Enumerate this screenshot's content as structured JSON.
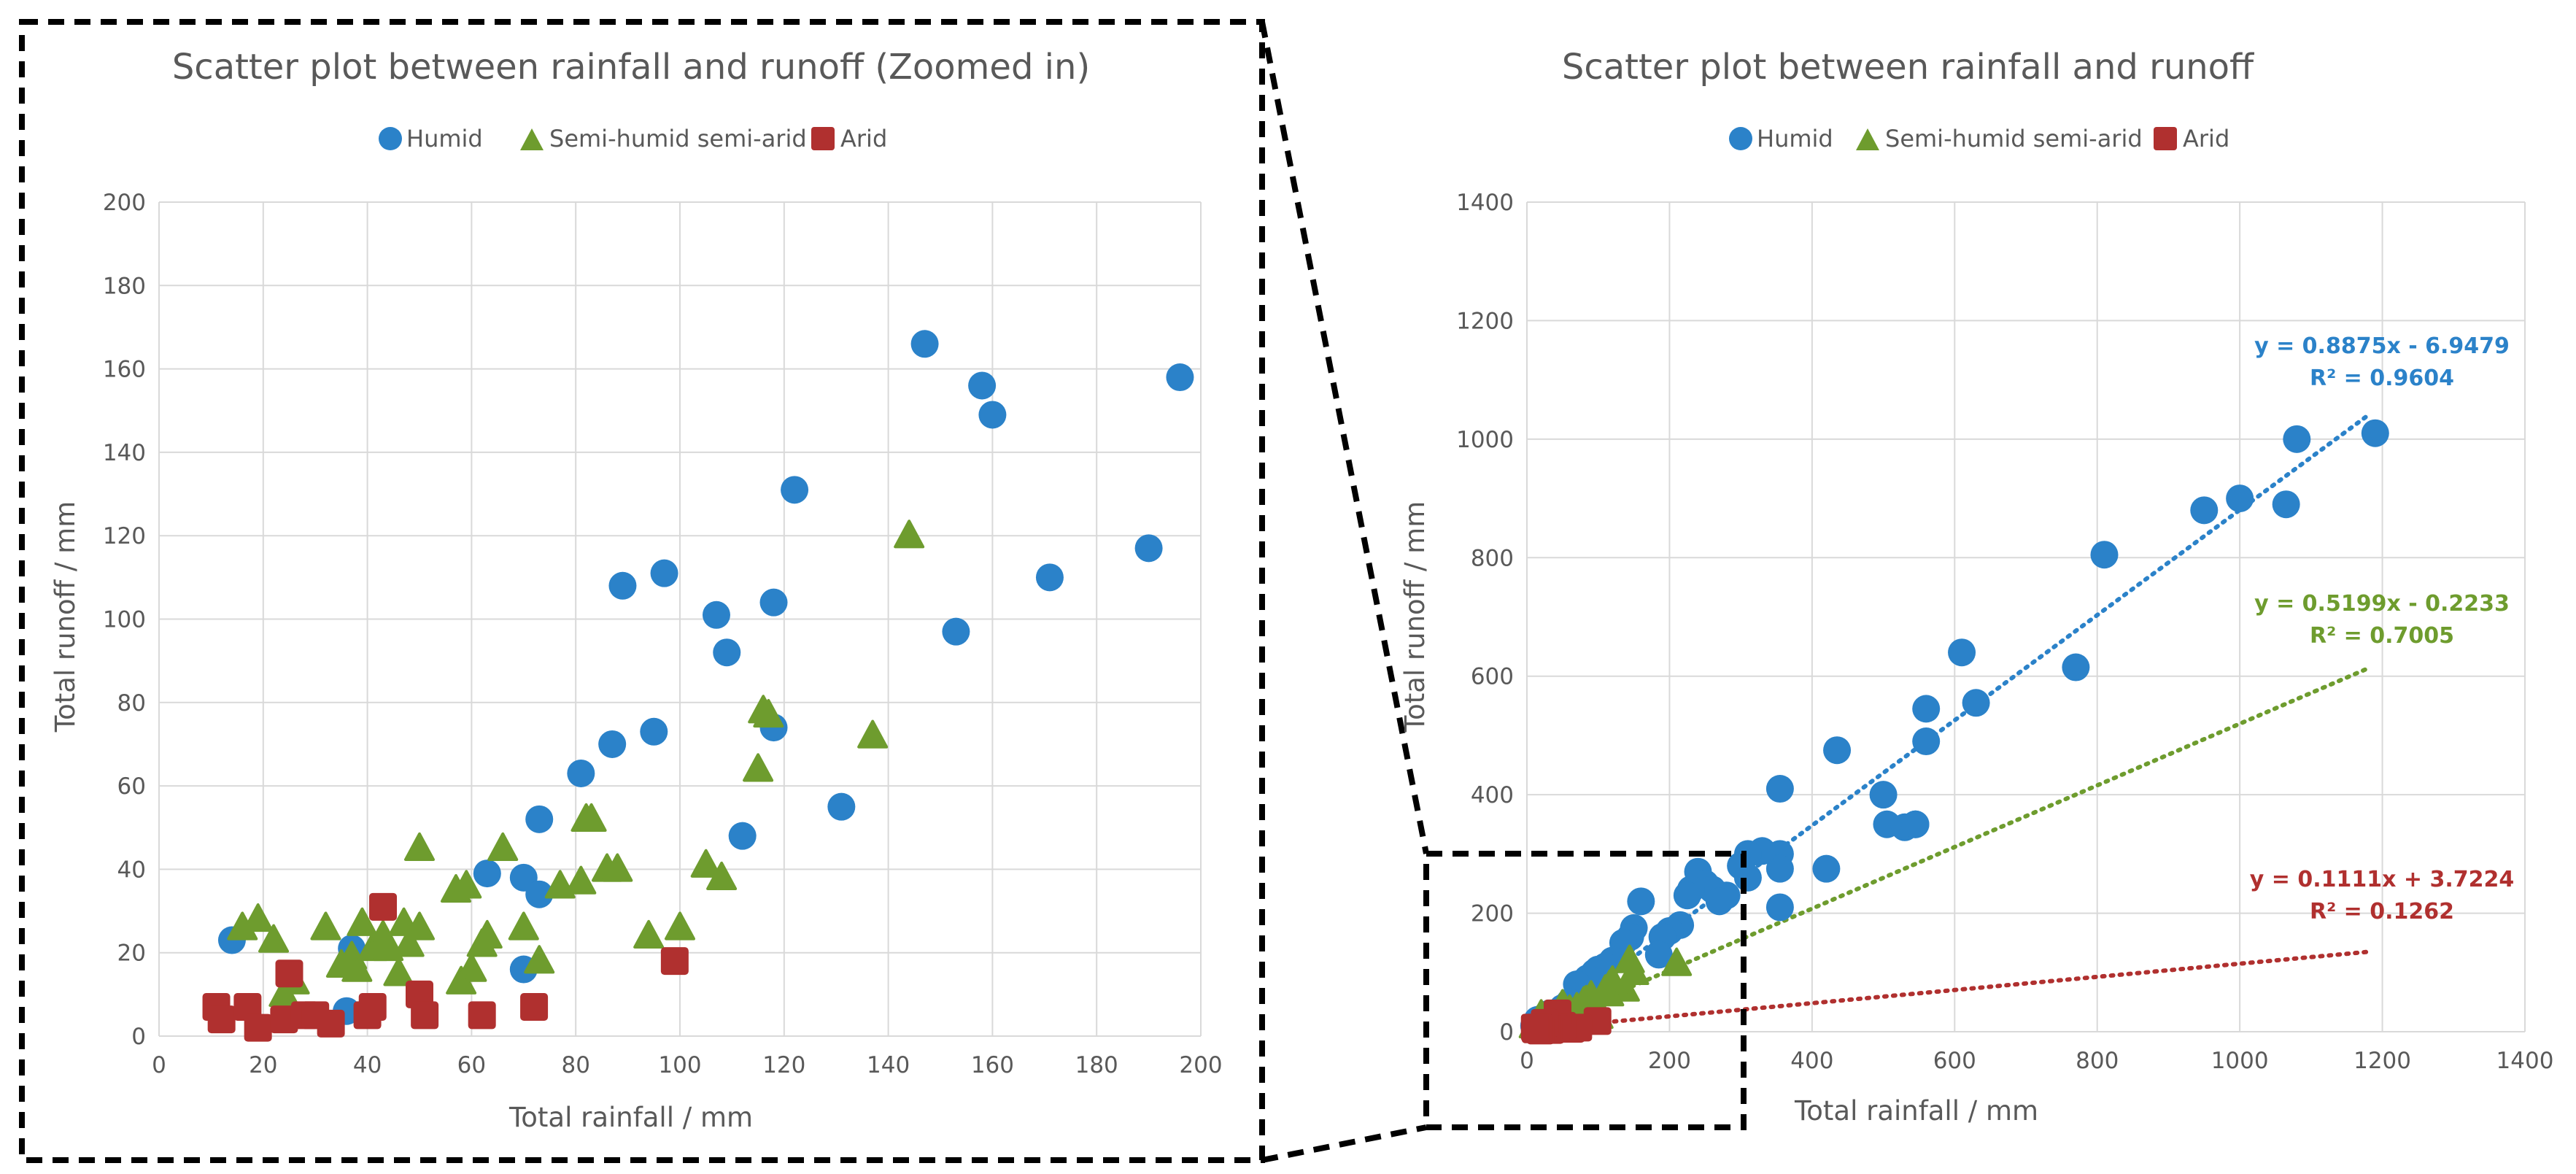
{
  "colors": {
    "humid": "#2b82c9",
    "semi": "#6e9c2e",
    "arid": "#b0302f",
    "text": "#595959",
    "grid": "#d9d9d9"
  },
  "chart_data": [
    {
      "id": "zoomed",
      "type": "scatter",
      "title": "Scatter plot between rainfall and runoff (Zoomed in)",
      "xlabel": "Total rainfall / mm",
      "ylabel": "Total runoff / mm",
      "xlim": [
        0,
        200
      ],
      "ylim": [
        0,
        200
      ],
      "xticks": [
        0,
        20,
        40,
        60,
        80,
        100,
        120,
        140,
        160,
        180,
        200
      ],
      "yticks": [
        0,
        20,
        40,
        60,
        80,
        100,
        120,
        140,
        160,
        180,
        200
      ],
      "legend": [
        "Humid",
        "Semi-humid semi-arid",
        "Arid"
      ],
      "series": [
        {
          "name": "Humid",
          "x": [
            147,
            158,
            160,
            196,
            122,
            171,
            190,
            89,
            97,
            107,
            109,
            118,
            95,
            153,
            87,
            81,
            73,
            118,
            131,
            112,
            63,
            70,
            73,
            70,
            14,
            37,
            36
          ],
          "y": [
            166,
            156,
            149,
            158,
            131,
            110,
            117,
            108,
            111,
            101,
            92,
            104,
            73,
            97,
            70,
            63,
            52,
            74,
            55,
            48,
            39,
            38,
            34,
            16,
            23,
            21,
            6
          ]
        },
        {
          "name": "Semi-humid semi-arid",
          "x": [
            144,
            116,
            137,
            115,
            83,
            82,
            86,
            88,
            105,
            108,
            117,
            100,
            94,
            50,
            16,
            19,
            22,
            26,
            24,
            32,
            37,
            39,
            41,
            43,
            47,
            50,
            46,
            48,
            57,
            59,
            62,
            63,
            60,
            58,
            66,
            70,
            73,
            77,
            81,
            38,
            44,
            35
          ],
          "y": [
            120,
            78,
            72,
            64,
            52,
            52,
            40,
            40,
            41,
            38,
            77,
            26,
            24,
            45,
            26,
            28,
            23,
            13,
            10,
            26,
            19,
            27,
            21,
            24,
            27,
            26,
            15,
            22,
            35,
            36,
            22,
            24,
            16,
            13,
            45,
            26,
            18,
            36,
            37,
            16,
            21,
            17
          ]
        },
        {
          "name": "Arid",
          "x": [
            43,
            25,
            11,
            12,
            17,
            19,
            24,
            28,
            30,
            33,
            40,
            41,
            50,
            51,
            62,
            72,
            99
          ],
          "y": [
            31,
            15,
            7,
            4,
            7,
            2,
            4,
            5,
            5,
            3,
            5,
            7,
            10,
            5,
            5,
            7,
            18
          ]
        }
      ]
    },
    {
      "id": "full",
      "type": "scatter",
      "title": "Scatter plot between rainfall and runoff",
      "xlabel": "Total rainfall / mm",
      "ylabel": "Total runoff / mm",
      "xlim": [
        0,
        1400
      ],
      "ylim": [
        0,
        1400
      ],
      "xticks": [
        0,
        200,
        400,
        600,
        800,
        1000,
        1200,
        1400
      ],
      "yticks": [
        0,
        200,
        400,
        600,
        800,
        1000,
        1200,
        1400
      ],
      "legend": [
        "Humid",
        "Semi-humid semi-arid",
        "Arid"
      ],
      "series": [
        {
          "name": "Humid",
          "x": [
            1190,
            1080,
            1000,
            950,
            1065,
            810,
            770,
            610,
            630,
            560,
            560,
            545,
            500,
            505,
            530,
            545,
            435,
            355,
            355,
            355,
            355,
            420,
            330,
            310,
            300,
            310,
            240,
            250,
            260,
            280,
            270,
            230,
            225,
            215,
            200,
            190,
            185,
            160,
            150,
            145,
            135,
            120,
            110,
            100,
            95,
            85,
            80,
            70,
            60,
            50,
            40,
            30,
            25,
            20,
            15,
            10
          ],
          "y": [
            1010,
            1000,
            900,
            880,
            890,
            805,
            615,
            640,
            555,
            545,
            490,
            350,
            400,
            350,
            345,
            350,
            475,
            410,
            300,
            275,
            210,
            275,
            305,
            300,
            280,
            260,
            270,
            250,
            240,
            230,
            220,
            240,
            230,
            180,
            170,
            160,
            130,
            220,
            175,
            160,
            150,
            120,
            110,
            105,
            100,
            90,
            60,
            80,
            50,
            40,
            30,
            30,
            25,
            20,
            20,
            10
          ]
        },
        {
          "name": "Semi-humid semi-arid",
          "x": [
            144,
            116,
            137,
            115,
            83,
            100,
            94,
            50,
            60,
            40,
            30,
            20,
            10,
            210,
            150,
            120,
            110,
            90,
            80,
            70
          ],
          "y": [
            120,
            78,
            72,
            64,
            52,
            26,
            24,
            45,
            36,
            27,
            26,
            28,
            10,
            115,
            100,
            85,
            70,
            60,
            50,
            40
          ]
        },
        {
          "name": "Arid",
          "x": [
            99,
            72,
            62,
            51,
            50,
            43,
            41,
            40,
            33,
            30,
            28,
            25,
            19,
            17,
            12,
            11
          ],
          "y": [
            18,
            7,
            5,
            5,
            10,
            31,
            7,
            5,
            3,
            5,
            5,
            15,
            2,
            7,
            4,
            7
          ]
        }
      ],
      "trendlines": [
        {
          "series": "Humid",
          "slope": 0.8875,
          "intercept": -6.9479,
          "x_end": 1180,
          "equation": "y = 0.8875x - 6.9479",
          "r2": "R² = 0.9604"
        },
        {
          "series": "Semi-humid semi-arid",
          "slope": 0.5199,
          "intercept": -0.2233,
          "x_end": 1180,
          "equation": "y = 0.5199x - 0.2233",
          "r2": "R² = 0.7005"
        },
        {
          "series": "Arid",
          "slope": 0.1111,
          "intercept": 3.7224,
          "x_end": 1180,
          "equation": "y = 0.1111x + 3.7224",
          "r2": "R² = 0.1262"
        }
      ]
    }
  ]
}
